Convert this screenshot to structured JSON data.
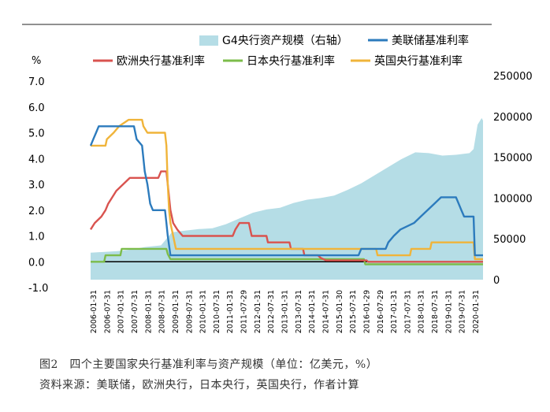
{
  "chart_data": {
    "type": "line",
    "left_axis": {
      "unit": "%",
      "ticks": [
        "7.0",
        "6.0",
        "5.0",
        "4.0",
        "3.0",
        "2.0",
        "1.0",
        "0.0",
        "-1.0"
      ],
      "range": [
        -1,
        7
      ]
    },
    "right_axis": {
      "ticks": [
        "250000",
        "200000",
        "150000",
        "100000",
        "50000",
        "0"
      ],
      "range": [
        0,
        250000
      ]
    },
    "x_tick_labels": [
      "2006-01-31",
      "2006-07-31",
      "2007-01-31",
      "2007-07-31",
      "2008-01-31",
      "2008-07-31",
      "2009-01-31",
      "2009-07-31",
      "2010-01-31",
      "2010-07-31",
      "2011-01-31",
      "2011-07-29",
      "2012-01-31",
      "2012-07-31",
      "2013-01-31",
      "2013-07-31",
      "2014-01-31",
      "2014-07-31",
      "2015-01-30",
      "2015-07-31",
      "2016-01-29",
      "2016-07-29",
      "2017-01-31",
      "2017-07-31",
      "2018-01-31",
      "2018-07-31",
      "2019-01-31",
      "2019-07-31",
      "2020-01-31"
    ],
    "legend": {
      "g4": "G4央行资产规模（右轴）",
      "fed": "美联储基准利率",
      "ecb": "欧洲央行基准利率",
      "boj": "日本央行基准利率",
      "boe": "英国央行基准利率"
    },
    "colors": {
      "g4": "#b5dde6",
      "fed": "#2c7bbd",
      "ecb": "#d9534f",
      "boj": "#7cbc4a",
      "boe": "#f0b43a",
      "zero": "#000000"
    },
    "x_range": [
      2006.0,
      2020.5
    ],
    "series": [
      {
        "key": "fed",
        "points": [
          [
            2006.0,
            4.5
          ],
          [
            2006.1,
            4.75
          ],
          [
            2006.2,
            5.0
          ],
          [
            2006.3,
            5.25
          ],
          [
            2007.6,
            5.25
          ],
          [
            2007.7,
            4.75
          ],
          [
            2007.9,
            4.5
          ],
          [
            2008.0,
            3.5
          ],
          [
            2008.1,
            3.0
          ],
          [
            2008.2,
            2.25
          ],
          [
            2008.3,
            2.0
          ],
          [
            2008.75,
            2.0
          ],
          [
            2008.8,
            1.5
          ],
          [
            2008.85,
            1.0
          ],
          [
            2008.95,
            0.25
          ],
          [
            2015.9,
            0.25
          ],
          [
            2016.0,
            0.5
          ],
          [
            2016.9,
            0.5
          ],
          [
            2017.0,
            0.75
          ],
          [
            2017.2,
            1.0
          ],
          [
            2017.45,
            1.25
          ],
          [
            2017.95,
            1.5
          ],
          [
            2018.2,
            1.75
          ],
          [
            2018.45,
            2.0
          ],
          [
            2018.7,
            2.25
          ],
          [
            2018.95,
            2.5
          ],
          [
            2019.5,
            2.5
          ],
          [
            2019.6,
            2.25
          ],
          [
            2019.7,
            2.0
          ],
          [
            2019.8,
            1.75
          ],
          [
            2020.15,
            1.75
          ],
          [
            2020.2,
            0.25
          ],
          [
            2020.5,
            0.25
          ]
        ]
      },
      {
        "key": "ecb",
        "points": [
          [
            2006.0,
            1.25
          ],
          [
            2006.15,
            1.5
          ],
          [
            2006.4,
            1.75
          ],
          [
            2006.55,
            2.0
          ],
          [
            2006.65,
            2.25
          ],
          [
            2006.8,
            2.5
          ],
          [
            2006.95,
            2.75
          ],
          [
            2007.2,
            3.0
          ],
          [
            2007.45,
            3.25
          ],
          [
            2008.5,
            3.25
          ],
          [
            2008.6,
            3.5
          ],
          [
            2008.8,
            3.5
          ],
          [
            2008.85,
            3.0
          ],
          [
            2008.9,
            2.5
          ],
          [
            2008.95,
            2.0
          ],
          [
            2009.05,
            1.5
          ],
          [
            2009.2,
            1.25
          ],
          [
            2009.4,
            1.0
          ],
          [
            2011.25,
            1.0
          ],
          [
            2011.35,
            1.25
          ],
          [
            2011.5,
            1.5
          ],
          [
            2011.85,
            1.5
          ],
          [
            2011.9,
            1.25
          ],
          [
            2011.95,
            1.0
          ],
          [
            2012.5,
            1.0
          ],
          [
            2012.55,
            0.75
          ],
          [
            2013.35,
            0.75
          ],
          [
            2013.4,
            0.5
          ],
          [
            2013.85,
            0.5
          ],
          [
            2013.9,
            0.25
          ],
          [
            2014.4,
            0.25
          ],
          [
            2014.5,
            0.15
          ],
          [
            2014.7,
            0.05
          ],
          [
            2016.2,
            0.05
          ],
          [
            2016.25,
            0.0
          ],
          [
            2020.5,
            0.0
          ]
        ]
      },
      {
        "key": "boj",
        "points": [
          [
            2006.0,
            0.0
          ],
          [
            2006.5,
            0.0
          ],
          [
            2006.55,
            0.25
          ],
          [
            2007.1,
            0.25
          ],
          [
            2007.15,
            0.5
          ],
          [
            2008.8,
            0.5
          ],
          [
            2008.85,
            0.3
          ],
          [
            2008.95,
            0.1
          ],
          [
            2016.1,
            0.1
          ],
          [
            2016.15,
            -0.1
          ],
          [
            2020.5,
            -0.1
          ]
        ]
      },
      {
        "key": "boe",
        "points": [
          [
            2006.0,
            4.5
          ],
          [
            2006.55,
            4.5
          ],
          [
            2006.6,
            4.75
          ],
          [
            2006.85,
            5.0
          ],
          [
            2007.05,
            5.25
          ],
          [
            2007.4,
            5.5
          ],
          [
            2007.9,
            5.5
          ],
          [
            2007.95,
            5.25
          ],
          [
            2008.1,
            5.0
          ],
          [
            2008.75,
            5.0
          ],
          [
            2008.8,
            4.5
          ],
          [
            2008.85,
            3.0
          ],
          [
            2008.9,
            2.0
          ],
          [
            2008.95,
            1.5
          ],
          [
            2009.05,
            1.0
          ],
          [
            2009.15,
            0.5
          ],
          [
            2016.55,
            0.5
          ],
          [
            2016.6,
            0.25
          ],
          [
            2017.8,
            0.25
          ],
          [
            2017.85,
            0.5
          ],
          [
            2018.55,
            0.5
          ],
          [
            2018.6,
            0.75
          ],
          [
            2020.15,
            0.75
          ],
          [
            2020.2,
            0.1
          ],
          [
            2020.5,
            0.1
          ]
        ]
      },
      {
        "key": "g4",
        "axis": "right",
        "points": [
          [
            2006.0,
            33000
          ],
          [
            2007.0,
            35000
          ],
          [
            2007.5,
            37000
          ],
          [
            2008.0,
            40000
          ],
          [
            2008.6,
            42000
          ],
          [
            2008.8,
            50000
          ],
          [
            2009.0,
            58000
          ],
          [
            2009.5,
            60000
          ],
          [
            2010.0,
            62000
          ],
          [
            2010.5,
            63000
          ],
          [
            2011.0,
            68000
          ],
          [
            2011.5,
            75000
          ],
          [
            2012.0,
            82000
          ],
          [
            2012.5,
            86000
          ],
          [
            2013.0,
            88000
          ],
          [
            2013.5,
            94000
          ],
          [
            2014.0,
            98000
          ],
          [
            2014.5,
            100000
          ],
          [
            2015.0,
            103000
          ],
          [
            2015.5,
            110000
          ],
          [
            2016.0,
            118000
          ],
          [
            2016.5,
            128000
          ],
          [
            2017.0,
            138000
          ],
          [
            2017.5,
            148000
          ],
          [
            2018.0,
            156000
          ],
          [
            2018.5,
            155000
          ],
          [
            2019.0,
            152000
          ],
          [
            2019.5,
            153000
          ],
          [
            2020.0,
            155000
          ],
          [
            2020.15,
            160000
          ],
          [
            2020.3,
            190000
          ],
          [
            2020.45,
            198000
          ],
          [
            2020.5,
            195000
          ]
        ]
      }
    ]
  },
  "captions": {
    "figure_title": "图2　四个主要国家央行基准利率与资产规模（单位：亿美元，%）",
    "source": "资料来源：美联储，欧洲央行，日本央行，英国央行，作者计算"
  }
}
